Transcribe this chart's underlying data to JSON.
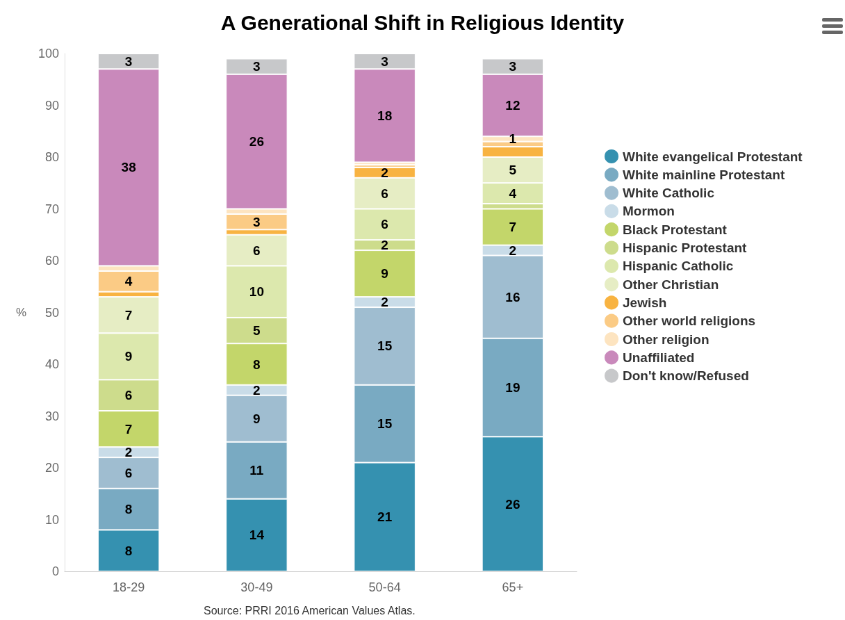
{
  "chart_data": {
    "type": "bar",
    "title": "A Generational Shift in Religious Identity",
    "ylabel": "%",
    "annotations": [
      "Source: PRRI 2016 American Values Atlas."
    ],
    "categories": [
      "18-29",
      "30-49",
      "50-64",
      "65+"
    ],
    "stacked": true,
    "legend": "right",
    "ylim": [
      0,
      100
    ],
    "yticks": [
      0,
      10,
      20,
      30,
      40,
      50,
      60,
      70,
      80,
      90,
      100
    ],
    "series": [
      {
        "name": "White evangelical Protestant",
        "color": "#3591b0",
        "values": [
          8,
          14,
          21,
          26
        ],
        "value_labels": [
          "8",
          "14",
          "21",
          "26"
        ]
      },
      {
        "name": "White mainline Protestant",
        "color": "#79aac2",
        "values": [
          8,
          11,
          15,
          19
        ],
        "value_labels": [
          "8",
          "11",
          "15",
          "19"
        ]
      },
      {
        "name": "White Catholic",
        "color": "#9fbdd0",
        "values": [
          6,
          9,
          15,
          16
        ],
        "value_labels": [
          "6",
          "9",
          "15",
          "16"
        ]
      },
      {
        "name": "Mormon",
        "color": "#c9dce8",
        "values": [
          2,
          2,
          2,
          2
        ],
        "value_labels": [
          "2",
          "2",
          "2",
          "2"
        ]
      },
      {
        "name": "Black Protestant",
        "color": "#c3d66a",
        "values": [
          7,
          8,
          9,
          7
        ],
        "value_labels": [
          "7",
          "8",
          "9",
          "7"
        ]
      },
      {
        "name": "Hispanic Protestant",
        "color": "#cddc8c",
        "values": [
          6,
          5,
          2,
          1
        ],
        "value_labels": [
          "6",
          "5",
          "2",
          null
        ]
      },
      {
        "name": "Hispanic Catholic",
        "color": "#dce8ad",
        "values": [
          9,
          10,
          6,
          4
        ],
        "value_labels": [
          "9",
          "10",
          "6",
          "4"
        ]
      },
      {
        "name": "Other Christian",
        "color": "#e6edc4",
        "values": [
          7,
          6,
          6,
          5
        ],
        "value_labels": [
          "7",
          "6",
          "6",
          "5"
        ]
      },
      {
        "name": "Jewish",
        "color": "#f8b341",
        "values": [
          1,
          1,
          2,
          2
        ],
        "value_labels": [
          null,
          null,
          "2",
          null
        ]
      },
      {
        "name": "Other world religions",
        "color": "#fbcb85",
        "values": [
          4,
          3,
          0.5,
          1
        ],
        "value_labels": [
          "4",
          "3",
          null,
          null
        ]
      },
      {
        "name": "Other religion",
        "color": "#fde4c0",
        "values": [
          1,
          1,
          0.5,
          1
        ],
        "value_labels": [
          null,
          null,
          null,
          "1"
        ]
      },
      {
        "name": "Unaffiliated",
        "color": "#c989bb",
        "values": [
          38,
          26,
          18,
          12
        ],
        "value_labels": [
          "38",
          "26",
          "18",
          "12"
        ]
      },
      {
        "name": "Don't know/Refused",
        "color": "#c7c8ca",
        "values": [
          3,
          3,
          3,
          3
        ],
        "value_labels": [
          "3",
          "3",
          "3",
          "3"
        ]
      }
    ]
  }
}
